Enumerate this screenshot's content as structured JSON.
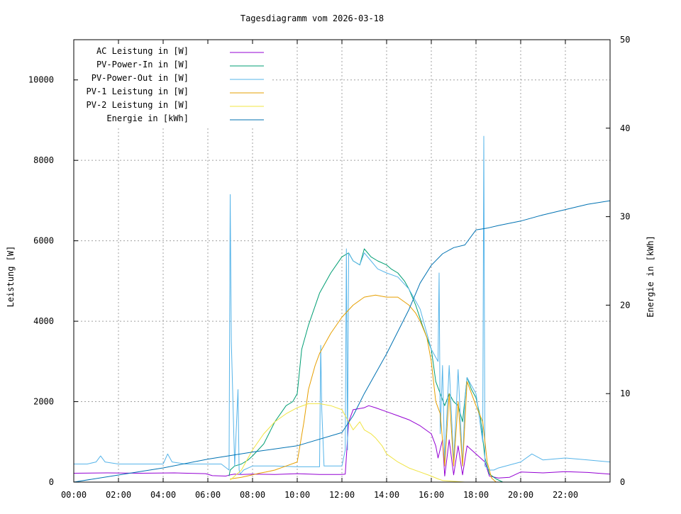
{
  "chart_data": {
    "type": "line",
    "title": "Tagesdiagramm vom 2026-03-18",
    "xlabel": "",
    "ylabel": "Leistung [W]",
    "y2label": "Energie in [kWh]",
    "xlim": [
      0,
      24
    ],
    "ylim": [
      0,
      11000
    ],
    "y2lim": [
      0,
      50
    ],
    "x_ticks": [
      "00:00",
      "02:00",
      "04:00",
      "06:00",
      "08:00",
      "10:00",
      "12:00",
      "14:00",
      "16:00",
      "18:00",
      "20:00",
      "22:00"
    ],
    "y_ticks": [
      "0",
      "2000",
      "4000",
      "6000",
      "8000",
      "10000"
    ],
    "y2_ticks": [
      "0",
      "10",
      "20",
      "30",
      "40",
      "50"
    ],
    "grid": true,
    "legend_position": "top-left",
    "x_unit": "hours",
    "series": [
      {
        "name": "AC Leistung in [W]",
        "color": "#9400d3",
        "axis": "y",
        "x": [
          0,
          1.5,
          3,
          4.5,
          5.9,
          6.2,
          6.8,
          7.0,
          7.2,
          7.5,
          8.0,
          9.0,
          10.0,
          11.0,
          12.0,
          12.15,
          12.3,
          12.5,
          13.0,
          13.2,
          13.5,
          14.0,
          14.5,
          15.0,
          15.5,
          16.0,
          16.2,
          16.3,
          16.5,
          16.6,
          16.8,
          17.0,
          17.2,
          17.4,
          17.6,
          17.7,
          18.0,
          18.4,
          18.6,
          19.0,
          19.5,
          20.0,
          21.0,
          22.0,
          23.0,
          24.0
        ],
        "values": [
          220,
          230,
          220,
          230,
          210,
          160,
          150,
          180,
          200,
          190,
          200,
          190,
          210,
          190,
          190,
          200,
          1500,
          1800,
          1850,
          1900,
          1850,
          1750,
          1650,
          1550,
          1400,
          1200,
          900,
          600,
          1050,
          150,
          1050,
          180,
          900,
          180,
          900,
          850,
          700,
          500,
          150,
          100,
          120,
          250,
          230,
          260,
          240,
          200
        ]
      },
      {
        "name": "PV-Power-In in [W]",
        "color": "#009e73",
        "axis": "y",
        "x": [
          6.95,
          7.0,
          7.2,
          7.5,
          7.8,
          8.0,
          8.5,
          9.0,
          9.5,
          9.8,
          10.0,
          10.2,
          10.5,
          11.0,
          11.5,
          12.0,
          12.3,
          12.5,
          12.8,
          13.0,
          13.3,
          13.6,
          14.0,
          14.2,
          14.5,
          14.8,
          15.0,
          15.3,
          15.6,
          16.0,
          16.2,
          16.4,
          16.6,
          16.8,
          17.0,
          17.2,
          17.4,
          17.6,
          17.8,
          18.0,
          18.2,
          18.4,
          18.6,
          18.9,
          19.2
        ],
        "values": [
          150,
          300,
          400,
          450,
          550,
          650,
          950,
          1500,
          1900,
          2000,
          2200,
          3300,
          3900,
          4700,
          5200,
          5600,
          5700,
          5500,
          5400,
          5800,
          5600,
          5500,
          5400,
          5300,
          5200,
          5000,
          4800,
          4400,
          3900,
          3300,
          2500,
          2200,
          1900,
          2200,
          2000,
          1900,
          1500,
          2600,
          2300,
          2100,
          1600,
          600,
          200,
          80,
          0
        ]
      },
      {
        "name": "PV-Power-Out in [W]",
        "color": "#56b4e9",
        "axis": "y",
        "x": [
          0,
          0.6,
          1.0,
          1.2,
          1.4,
          2.0,
          3.0,
          4.0,
          4.2,
          4.4,
          5.0,
          6.0,
          6.6,
          6.95,
          7.0,
          7.05,
          7.2,
          7.35,
          7.4,
          7.45,
          7.6,
          8.0,
          9.0,
          10.0,
          11.0,
          11.05,
          11.1,
          11.2,
          12.0,
          12.15,
          12.2,
          12.25,
          12.3,
          12.5,
          12.8,
          13.0,
          13.3,
          13.6,
          14.0,
          14.5,
          15.0,
          15.5,
          16.0,
          16.3,
          16.35,
          16.4,
          16.5,
          16.6,
          16.8,
          17.0,
          17.2,
          17.4,
          17.5,
          17.6,
          18.0,
          18.3,
          18.35,
          18.4,
          18.6,
          18.8,
          19.0,
          20.0,
          20.5,
          21.0,
          22.0,
          23.0,
          24.0
        ],
        "values": [
          450,
          450,
          500,
          650,
          500,
          450,
          450,
          450,
          700,
          500,
          450,
          450,
          450,
          300,
          7150,
          3500,
          400,
          2300,
          300,
          200,
          300,
          400,
          400,
          380,
          380,
          3400,
          1800,
          400,
          400,
          800,
          5800,
          800,
          5700,
          5500,
          5400,
          5700,
          5500,
          5300,
          5200,
          5100,
          4800,
          4300,
          3300,
          3000,
          5200,
          1200,
          2900,
          500,
          2900,
          500,
          2800,
          400,
          2000,
          2600,
          2200,
          1000,
          8600,
          400,
          300,
          300,
          350,
          500,
          700,
          550,
          600,
          550,
          500
        ]
      },
      {
        "name": "PV-1 Leistung in [W]",
        "color": "#e69f00",
        "axis": "y",
        "x": [
          7.0,
          7.5,
          8.0,
          8.3,
          8.6,
          9.0,
          9.5,
          10.0,
          10.3,
          10.5,
          10.8,
          11.0,
          11.5,
          12.0,
          12.5,
          13.0,
          13.5,
          14.0,
          14.5,
          15.0,
          15.3,
          15.5,
          15.8,
          16.0,
          16.2,
          16.4,
          16.6,
          16.8,
          17.0,
          17.2,
          17.4,
          17.6,
          17.8,
          18.0,
          18.3,
          18.5,
          18.7,
          18.9
        ],
        "values": [
          80,
          120,
          180,
          220,
          250,
          300,
          400,
          500,
          1500,
          2300,
          2900,
          3200,
          3700,
          4100,
          4400,
          4600,
          4650,
          4600,
          4600,
          4400,
          4200,
          4000,
          3600,
          3000,
          2000,
          1700,
          400,
          2200,
          400,
          2000,
          400,
          2500,
          2200,
          1900,
          1500,
          500,
          100,
          0
        ]
      },
      {
        "name": "PV-2 Leistung in [W]",
        "color": "#f0e442",
        "axis": "y",
        "x": [
          7.0,
          7.5,
          8.0,
          8.5,
          9.0,
          9.5,
          10.0,
          10.5,
          11.0,
          11.5,
          12.0,
          12.3,
          12.5,
          12.8,
          13.0,
          13.3,
          13.5,
          13.8,
          14.0,
          14.5,
          15.0,
          15.5,
          16.0,
          16.3,
          16.5,
          17.0,
          17.5
        ],
        "values": [
          50,
          300,
          800,
          1200,
          1500,
          1700,
          1850,
          1950,
          1950,
          1900,
          1800,
          1500,
          1300,
          1500,
          1300,
          1200,
          1100,
          900,
          700,
          500,
          350,
          250,
          150,
          80,
          40,
          20,
          0
        ]
      },
      {
        "name": "Energie in [kWh]",
        "color": "#0072b2",
        "axis": "y2",
        "x": [
          0,
          2,
          4,
          6,
          8,
          10,
          12,
          12.5,
          13,
          14,
          15,
          15.5,
          16,
          16.5,
          17,
          17.5,
          18,
          18.5,
          19,
          20,
          21,
          22,
          23,
          24
        ],
        "values": [
          0,
          0.8,
          1.6,
          2.6,
          3.4,
          4.1,
          5.6,
          7.5,
          10.0,
          14.5,
          19.5,
          22.5,
          24.5,
          25.8,
          26.5,
          26.8,
          28.5,
          28.7,
          29.0,
          29.5,
          30.2,
          30.8,
          31.4,
          31.8
        ]
      }
    ]
  }
}
